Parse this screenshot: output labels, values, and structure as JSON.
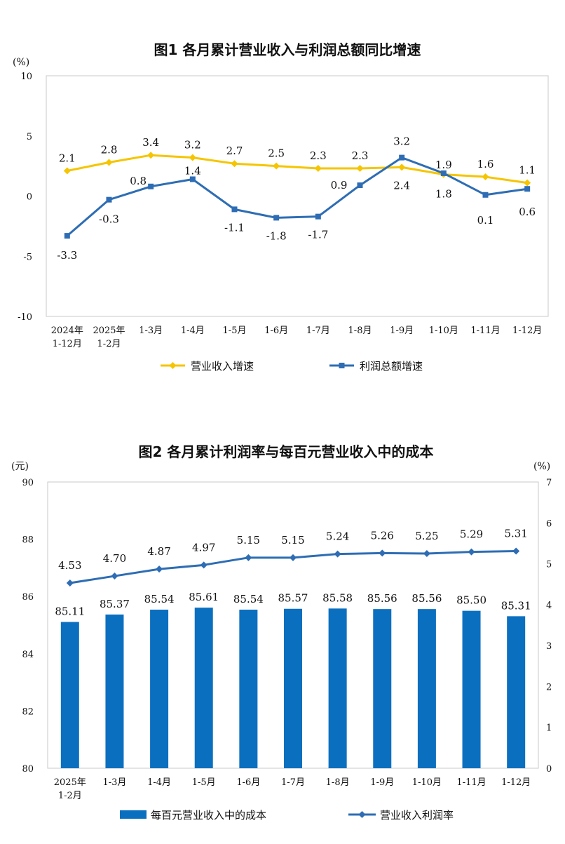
{
  "chart_data": [
    {
      "type": "line",
      "title": "图1  各月累计营业收入与利润总额同比增速",
      "ylabel": "(%)",
      "ylim": [
        -10,
        10
      ],
      "yticks": [
        "10",
        "5",
        "0",
        "-5",
        "-10"
      ],
      "grid": false,
      "legend_position": "bottom",
      "categories": [
        [
          "2024年",
          "1-12月"
        ],
        [
          "2025年",
          "1-2月"
        ],
        [
          "1-3月"
        ],
        [
          "1-4月"
        ],
        [
          "1-5月"
        ],
        [
          "1-6月"
        ],
        [
          "1-7月"
        ],
        [
          "1-8月"
        ],
        [
          "1-9月"
        ],
        [
          "1-10月"
        ],
        [
          "1-11月"
        ],
        [
          "1-12月"
        ]
      ],
      "series": [
        {
          "name": "营业收入增速",
          "color": "#F5C500",
          "marker": "diamond",
          "values": [
            2.1,
            2.8,
            3.4,
            3.2,
            2.7,
            2.5,
            2.3,
            2.3,
            2.4,
            1.8,
            1.6,
            1.1
          ],
          "labels": [
            "2.1",
            "2.8",
            "3.4",
            "3.2",
            "2.7",
            "2.5",
            "2.3",
            "2.3",
            "2.4",
            "1.8",
            "1.6",
            "1.1"
          ]
        },
        {
          "name": "利润总额增速",
          "color": "#2E6DB4",
          "marker": "square",
          "values": [
            -3.3,
            -0.3,
            0.8,
            1.4,
            -1.1,
            -1.8,
            -1.7,
            0.9,
            3.2,
            1.9,
            0.1,
            0.6
          ],
          "labels": [
            "-3.3",
            "-0.3",
            "0.8",
            "1.4",
            "-1.1",
            "-1.8",
            "-1.7",
            "0.9",
            "3.2",
            "1.9",
            "0.1",
            "0.6"
          ]
        }
      ]
    },
    {
      "type": "bar+line",
      "title": "图2  各月累计利润率与每百元营业收入中的成本",
      "ylabel_left": "(元)",
      "ylabel_right": "(%)",
      "ylim_left": [
        80,
        90
      ],
      "ylim_right": [
        0,
        7
      ],
      "yticks_left": [
        "90",
        "88",
        "86",
        "84",
        "82",
        "80"
      ],
      "yticks_right": [
        "7",
        "6",
        "5",
        "4",
        "3",
        "2",
        "1",
        "0"
      ],
      "grid": false,
      "legend_position": "bottom",
      "categories": [
        [
          "2025年",
          "1-2月"
        ],
        [
          "1-3月"
        ],
        [
          "1-4月"
        ],
        [
          "1-5月"
        ],
        [
          "1-6月"
        ],
        [
          "1-7月"
        ],
        [
          "1-8月"
        ],
        [
          "1-9月"
        ],
        [
          "1-10月"
        ],
        [
          "1-11月"
        ],
        [
          "1-12月"
        ]
      ],
      "series": [
        {
          "name": "每百元营业收入中的成本",
          "kind": "bar",
          "axis": "left",
          "color": "#0B6FBF",
          "values": [
            85.11,
            85.37,
            85.54,
            85.61,
            85.54,
            85.57,
            85.58,
            85.56,
            85.56,
            85.5,
            85.31
          ],
          "labels": [
            "85.11",
            "85.37",
            "85.54",
            "85.61",
            "85.54",
            "85.57",
            "85.58",
            "85.56",
            "85.56",
            "85.50",
            "85.31"
          ]
        },
        {
          "name": "营业收入利润率",
          "kind": "line",
          "axis": "right",
          "color": "#2E6DB4",
          "marker": "diamond",
          "values": [
            4.53,
            4.7,
            4.87,
            4.97,
            5.15,
            5.15,
            5.24,
            5.26,
            5.25,
            5.29,
            5.31
          ],
          "labels": [
            "4.53",
            "4.70",
            "4.87",
            "4.97",
            "5.15",
            "5.15",
            "5.24",
            "5.26",
            "5.25",
            "5.29",
            "5.31"
          ]
        }
      ]
    }
  ]
}
